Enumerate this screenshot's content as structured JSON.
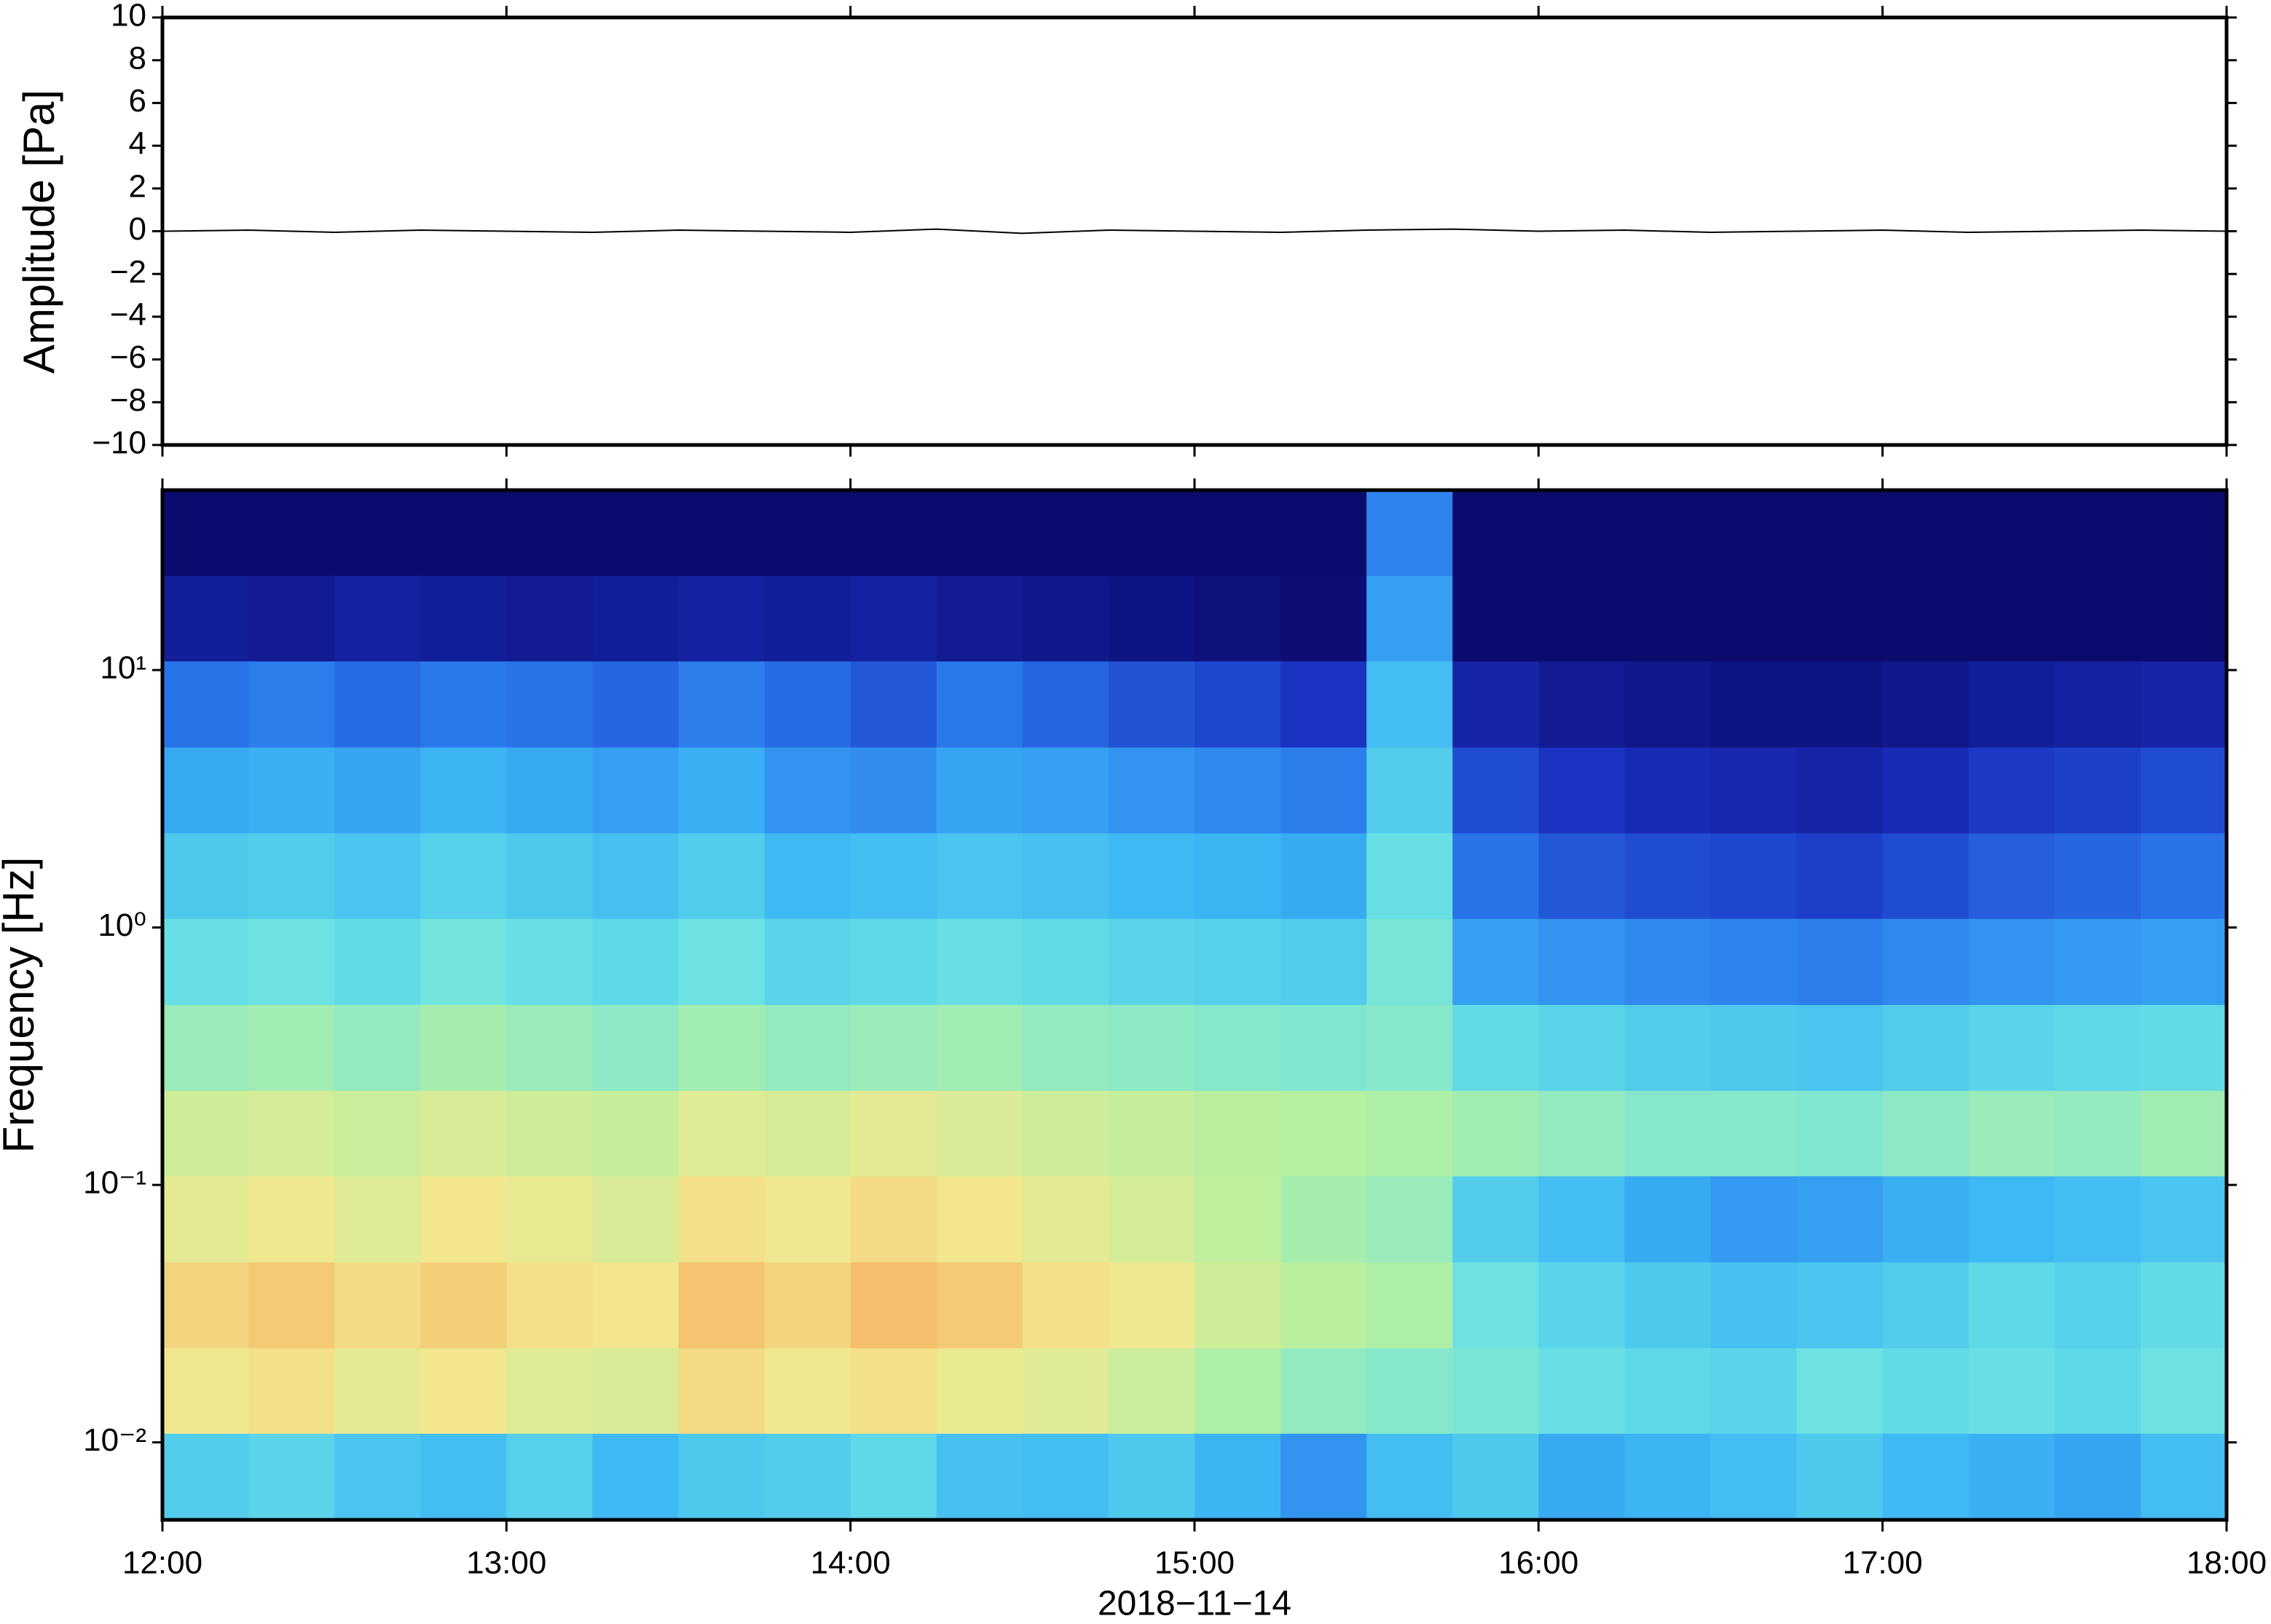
{
  "chart_data": [
    {
      "type": "line",
      "ylabel": "Amplitude [Pa]",
      "color": "#000000",
      "x": [
        12,
        12.25,
        12.5,
        12.75,
        13,
        13.25,
        13.5,
        13.75,
        14,
        14.25,
        14.5,
        14.75,
        15,
        15.25,
        15.5,
        15.75,
        16,
        16.25,
        16.5,
        16.75,
        17,
        17.25,
        17.5,
        17.75,
        18
      ],
      "values": [
        0,
        0.05,
        -0.05,
        0.05,
        0,
        -0.05,
        0.05,
        0,
        -0.05,
        0.1,
        -0.1,
        0.05,
        0,
        -0.05,
        0.05,
        0.1,
        0,
        0.05,
        -0.05,
        0,
        0.05,
        -0.05,
        0,
        0.05,
        0
      ],
      "xlim": [
        12,
        18
      ],
      "xticks": [
        12,
        13,
        14,
        15,
        16,
        17,
        18
      ],
      "ylim": [
        -10,
        10
      ],
      "yticks": [
        {
          "value": -10,
          "label": "−10"
        },
        {
          "value": -8,
          "label": "−8"
        },
        {
          "value": -6,
          "label": "−6"
        },
        {
          "value": -4,
          "label": "−4"
        },
        {
          "value": -2,
          "label": "−2"
        },
        0,
        2,
        4,
        6,
        8,
        10
      ]
    },
    {
      "type": "heatmap",
      "xlabel": "2018−11−14",
      "ylabel": "Frequency [Hz]",
      "ylog": true,
      "xlim": [
        12,
        18
      ],
      "xticks": [
        {
          "value": 12,
          "label": "12:00"
        },
        {
          "value": 13,
          "label": "13:00"
        },
        {
          "value": 14,
          "label": "14:00"
        },
        {
          "value": 15,
          "label": "15:00"
        },
        {
          "value": 16,
          "label": "16:00"
        },
        {
          "value": 17,
          "label": "17:00"
        },
        {
          "value": 18,
          "label": "18:00"
        }
      ],
      "ylim": [
        0.005,
        50
      ],
      "yticks": [
        {
          "value": 10,
          "label": "10¹"
        },
        {
          "value": 1,
          "label": "10⁰"
        },
        {
          "value": 0.1,
          "label": "10⁻¹"
        },
        {
          "value": 0.01,
          "label": "10⁻²"
        }
      ],
      "time_bins": [
        12,
        12.25,
        12.5,
        12.75,
        13,
        13.25,
        13.5,
        13.75,
        14,
        14.25,
        14.5,
        14.75,
        15,
        15.25,
        15.5,
        15.75,
        16,
        16.25,
        16.5,
        16.75,
        17,
        17.25,
        17.5,
        17.75,
        18
      ],
      "frequency_bins": [
        50,
        23.2,
        10.8,
        5,
        2.32,
        1.08,
        0.5,
        0.232,
        0.108,
        0.05,
        0.0232,
        0.0108,
        0.005
      ],
      "zlim": [
        0,
        8
      ],
      "colormap": [
        "#0b0b6e",
        "#1a2fc0",
        "#2a78ec",
        "#3cb6f4",
        "#6ae2e4",
        "#b4f0a0",
        "#f2e890",
        "#f6a858"
      ],
      "z": [
        [
          0,
          0,
          0,
          0,
          0,
          0,
          0,
          0,
          0,
          0,
          0,
          0,
          0,
          0,
          2.5,
          0,
          0,
          0,
          0,
          0,
          0,
          0,
          0,
          0
        ],
        [
          0.6,
          0.5,
          0.7,
          0.6,
          0.5,
          0.6,
          0.7,
          0.6,
          0.7,
          0.5,
          0.4,
          0.3,
          0.2,
          0.1,
          3,
          0,
          0,
          0,
          0,
          0,
          0,
          0,
          0,
          0
        ],
        [
          2.2,
          2.4,
          2.1,
          2.3,
          2.2,
          2.0,
          2.4,
          2.1,
          1.8,
          2.3,
          2.0,
          1.7,
          1.5,
          1.2,
          3.6,
          0.8,
          0.5,
          0.4,
          0.3,
          0.3,
          0.4,
          0.6,
          0.7,
          0.8
        ],
        [
          3.2,
          3.3,
          3.1,
          3.4,
          3.2,
          3.0,
          3.3,
          2.8,
          2.7,
          3.1,
          3.0,
          2.8,
          2.6,
          2.4,
          4.0,
          1.6,
          1.2,
          1.0,
          0.9,
          0.8,
          1.0,
          1.3,
          1.4,
          1.6
        ],
        [
          3.9,
          4.0,
          3.8,
          4.1,
          3.9,
          3.7,
          4.0,
          3.5,
          3.6,
          3.8,
          3.7,
          3.5,
          3.4,
          3.2,
          4.5,
          2.2,
          1.8,
          1.6,
          1.5,
          1.4,
          1.6,
          1.9,
          2.0,
          2.2
        ],
        [
          4.5,
          4.6,
          4.4,
          4.7,
          4.5,
          4.3,
          4.6,
          4.2,
          4.3,
          4.5,
          4.4,
          4.2,
          4.1,
          4.0,
          4.8,
          3.0,
          2.8,
          2.6,
          2.5,
          2.4,
          2.6,
          2.8,
          2.9,
          3.0
        ],
        [
          5.3,
          5.4,
          5.2,
          5.5,
          5.3,
          5.1,
          5.4,
          5.2,
          5.3,
          5.4,
          5.2,
          5.1,
          5.0,
          4.9,
          5.0,
          4.4,
          4.2,
          4.0,
          3.9,
          3.8,
          4.0,
          4.2,
          4.3,
          4.4
        ],
        [
          6.2,
          6.3,
          6.1,
          6.4,
          6.2,
          6.0,
          6.5,
          6.3,
          6.6,
          6.4,
          6.2,
          6.0,
          5.8,
          5.7,
          5.6,
          5.4,
          5.2,
          5.0,
          5.0,
          4.9,
          5.1,
          5.3,
          5.2,
          5.4
        ],
        [
          6.6,
          6.8,
          6.5,
          6.9,
          6.7,
          6.4,
          7.0,
          6.8,
          7.1,
          6.9,
          6.6,
          6.3,
          5.9,
          5.5,
          5.3,
          4.0,
          3.6,
          3.2,
          2.9,
          3.0,
          3.3,
          3.5,
          3.6,
          3.8
        ],
        [
          7.2,
          7.4,
          7.1,
          7.3,
          7.0,
          6.9,
          7.5,
          7.2,
          7.6,
          7.4,
          7.0,
          6.8,
          6.2,
          5.8,
          5.6,
          4.6,
          4.2,
          3.9,
          3.7,
          3.8,
          4.0,
          4.3,
          4.1,
          4.4
        ],
        [
          6.8,
          7.0,
          6.6,
          6.9,
          6.5,
          6.4,
          7.1,
          6.8,
          7.0,
          6.7,
          6.5,
          6.1,
          5.6,
          5.2,
          5.0,
          4.8,
          4.5,
          4.3,
          4.2,
          4.6,
          4.4,
          4.5,
          4.3,
          4.6
        ],
        [
          4.0,
          4.2,
          3.8,
          3.6,
          4.1,
          3.5,
          3.9,
          4.0,
          4.3,
          3.7,
          3.6,
          3.9,
          3.4,
          2.8,
          3.6,
          3.9,
          3.2,
          3.4,
          3.6,
          3.9,
          3.5,
          3.3,
          3.1,
          3.6
        ]
      ]
    }
  ]
}
